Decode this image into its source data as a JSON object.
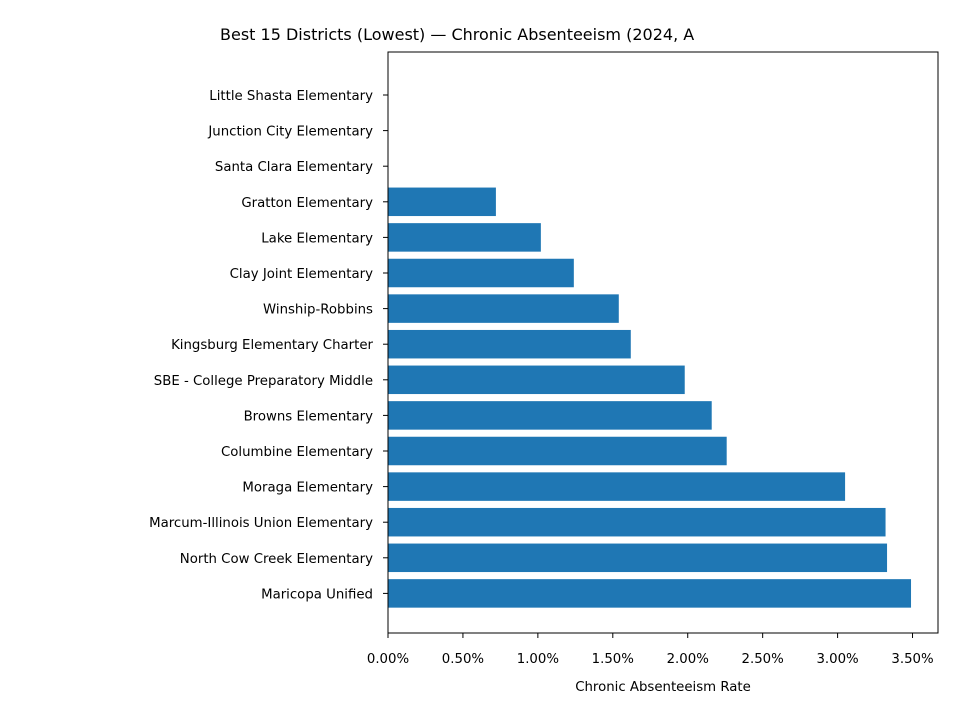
{
  "chart_data": {
    "type": "bar",
    "orientation": "horizontal",
    "title": "Best 15 Districts (Lowest) — Chronic Absenteeism (2024, A",
    "xlabel": "Chronic Absenteeism Rate",
    "ylabel": "",
    "xlim": [
      0,
      0.0367
    ],
    "x_ticks": [
      0,
      0.005,
      0.01,
      0.015,
      0.02,
      0.025,
      0.03,
      0.035
    ],
    "x_tick_labels": [
      "0.00%",
      "0.50%",
      "1.00%",
      "1.50%",
      "2.00%",
      "2.50%",
      "3.00%",
      "3.50%"
    ],
    "categories": [
      "Little Shasta Elementary",
      "Junction City Elementary",
      "Santa Clara Elementary",
      "Gratton Elementary",
      "Lake Elementary",
      "Clay Joint Elementary",
      "Winship-Robbins",
      "Kingsburg Elementary Charter",
      "SBE - College Preparatory Middle",
      "Browns Elementary",
      "Columbine Elementary",
      "Moraga Elementary",
      "Marcum-Illinois Union Elementary",
      "North Cow Creek Elementary",
      "Maricopa Unified"
    ],
    "values": [
      0,
      0,
      0,
      0.0072,
      0.0102,
      0.0124,
      0.0154,
      0.0162,
      0.0198,
      0.0216,
      0.0226,
      0.0305,
      0.0332,
      0.0333,
      0.0349
    ],
    "bar_color": "#1f77b4",
    "grid": false,
    "legend": "none"
  }
}
